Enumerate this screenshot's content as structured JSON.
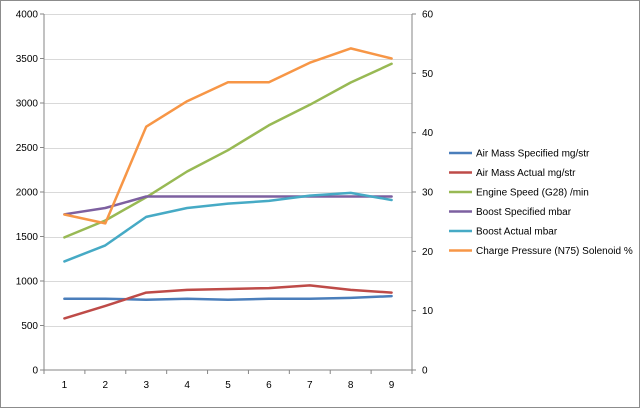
{
  "chart_data": {
    "type": "line",
    "title": "",
    "xlabel": "",
    "ylabel": "",
    "x": [
      1,
      2,
      3,
      4,
      5,
      6,
      7,
      8,
      9
    ],
    "y_left": {
      "min": 0,
      "max": 4000,
      "step": 500,
      "ticks": [
        "0",
        "500",
        "1000",
        "1500",
        "2000",
        "2500",
        "3000",
        "3500",
        "4000"
      ]
    },
    "y_right": {
      "min": 0,
      "max": 60,
      "step": 10,
      "ticks": [
        "0",
        "10",
        "20",
        "30",
        "40",
        "50",
        "60"
      ]
    },
    "x_ticks": [
      "1",
      "2",
      "3",
      "4",
      "5",
      "6",
      "7",
      "8",
      "9"
    ],
    "grid": true,
    "legend_position": "right",
    "series": [
      {
        "name": "Air Mass Specified  mg/str",
        "axis": "left",
        "color": "#4a7ebb",
        "values": [
          800,
          800,
          790,
          800,
          790,
          800,
          800,
          810,
          830
        ]
      },
      {
        "name": "Air Mass Actual  mg/str",
        "axis": "left",
        "color": "#be4b48",
        "values": [
          580,
          720,
          870,
          900,
          910,
          920,
          950,
          900,
          870
        ]
      },
      {
        "name": "Engine Speed (G28)  /min",
        "axis": "left",
        "color": "#98b954",
        "values": [
          1490,
          1680,
          1940,
          2230,
          2470,
          2750,
          2980,
          3230,
          3440
        ]
      },
      {
        "name": "Boost Specified  mbar",
        "axis": "left",
        "color": "#7d60a0",
        "values": [
          1750,
          1820,
          1950,
          1950,
          1950,
          1950,
          1950,
          1950,
          1950
        ]
      },
      {
        "name": "Boost Actual  mbar",
        "axis": "left",
        "color": "#46aac5",
        "values": [
          1220,
          1400,
          1720,
          1820,
          1870,
          1900,
          1960,
          1990,
          1910
        ]
      },
      {
        "name": "Charge Pressure (N75) Solenoid  %",
        "axis": "right",
        "color": "#f79646",
        "values": [
          26.2,
          24.7,
          41,
          45.3,
          48.5,
          48.5,
          51.8,
          54.2,
          52.5
        ]
      }
    ]
  }
}
